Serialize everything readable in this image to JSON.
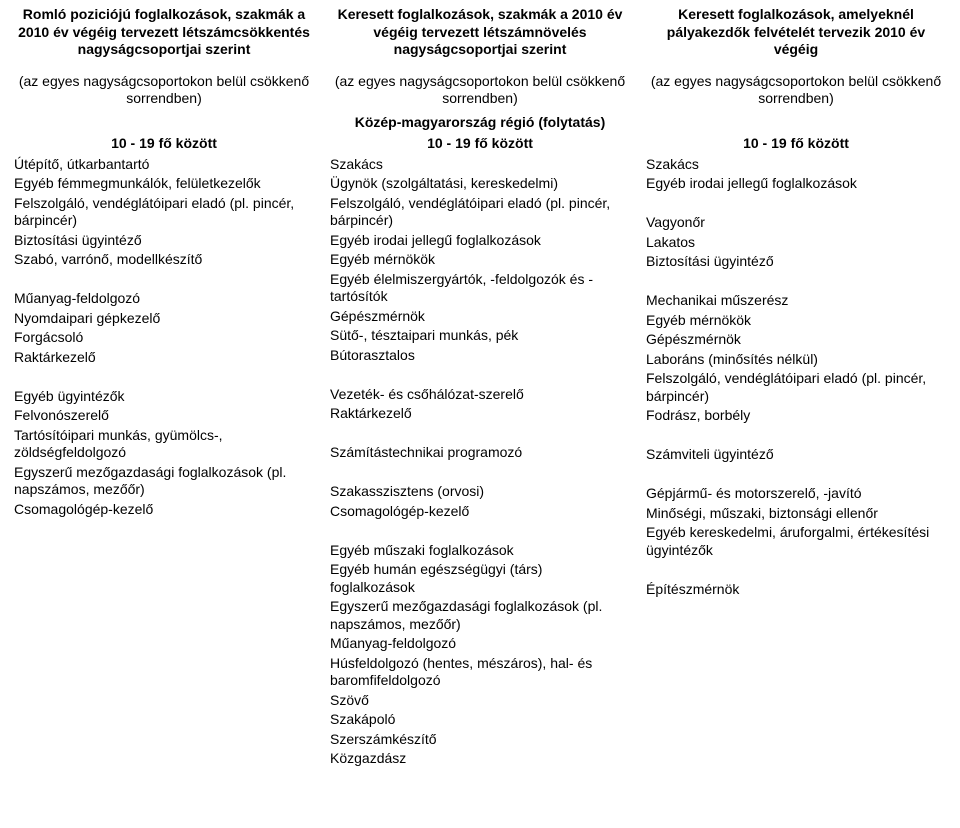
{
  "headers": {
    "col1": "Romló poziciójú foglalkozások, szakmák a 2010 év végéig tervezett létszámcsökkentés nagyságcsoportjai szerint",
    "col2": "Keresett foglalkozások, szakmák a 2010 év végéig tervezett létszámnövelés nagyságcsoportjai szerint",
    "col3": "Keresett foglalkozások, amelyeknél pályakezdők felvételét tervezik 2010 év végéig"
  },
  "subheaders": {
    "col1": "(az egyes nagyságcsoportokon belül csökkenő sorrendben)",
    "col2": "(az egyes nagyságcsoportokon belül csökkenő sorrendben)",
    "col3": "(az egyes nagyságcsoportokon belül csökkenő sorrendben)"
  },
  "region": "Közép-magyarország régió (folytatás)",
  "range": {
    "col1": "10 - 19 fő között",
    "col2": "10 - 19 fő között",
    "col3": "10 - 19 fő között"
  },
  "lists": {
    "col1": [
      "Útépítő, útkarbantartó",
      "Egyéb fémmegmunkálók, felületkezelők",
      "Felszolgáló, vendéglátóipari eladó (pl. pincér, bárpincér)",
      "Biztosítási ügyintéző",
      "Szabó, varrónő, modellkészítő",
      "",
      "Műanyag-feldolgozó",
      "Nyomdaipari gépkezelő",
      "Forgácsoló",
      "Raktárkezelő",
      "",
      "Egyéb ügyintézők",
      "Felvonószerelő",
      "Tartósítóipari munkás, gyümölcs-, zöldségfeldolgozó",
      "Egyszerű mezőgazdasági foglalkozások (pl. napszámos, mezőőr)",
      "Csomagológép-kezelő"
    ],
    "col2": [
      "Szakács",
      "Ügynök (szolgáltatási, kereskedelmi)",
      "Felszolgáló, vendéglátóipari eladó (pl. pincér, bárpincér)",
      "Egyéb irodai jellegű foglalkozások",
      "Egyéb mérnökök",
      "Egyéb élelmiszergyártók, -feldolgozók és -tartósítók",
      "Gépészmérnök",
      "Sütő-, tésztaipari munkás, pék",
      "Bútorasztalos",
      "",
      "Vezeték- és csőhálózat-szerelő",
      "Raktárkezelő",
      "",
      "Számítástechnikai programozó",
      "",
      "Szakasszisztens (orvosi)",
      "Csomagológép-kezelő",
      "",
      "Egyéb műszaki foglalkozások",
      "Egyéb humán egészségügyi (társ) foglalkozások",
      "Egyszerű mezőgazdasági foglalkozások (pl. napszámos, mezőőr)",
      "Műanyag-feldolgozó",
      "Húsfeldolgozó (hentes, mészáros), hal- és baromfifeldolgozó",
      "Szövő",
      "Szakápoló",
      "Szerszámkészítő",
      "Közgazdász"
    ],
    "col3": [
      "Szakács",
      "Egyéb irodai jellegű foglalkozások",
      "",
      "Vagyonőr",
      "Lakatos",
      "Biztosítási ügyintéző",
      "",
      "Mechanikai műszerész",
      "Egyéb mérnökök",
      "Gépészmérnök",
      "Laboráns (minősítés nélkül)",
      "Felszolgáló, vendéglátóipari eladó (pl. pincér, bárpincér)",
      "Fodrász, borbély",
      "",
      "Számviteli ügyintéző",
      "",
      "Gépjármű- és motorszerelő, -javító",
      "Minőségi, műszaki, biztonsági ellenőr",
      "Egyéb kereskedelmi, áruforgalmi, értékesítési ügyintézők",
      "",
      "Építészmérnök"
    ]
  }
}
